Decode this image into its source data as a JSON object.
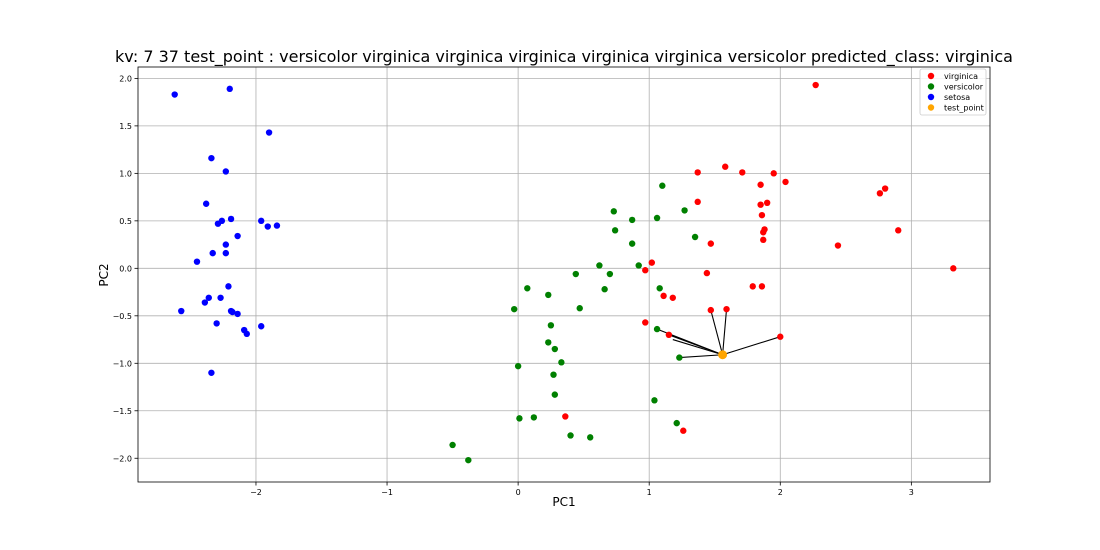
{
  "chart_data": {
    "type": "scatter",
    "title": "kv: 7 37 test_point : versicolor virginica virginica virginica virginica virginica versicolor   predicted_class: virginica",
    "xlabel": "PC1",
    "ylabel": "PC2",
    "xlim": [
      -2.9,
      3.6
    ],
    "ylim": [
      -2.25,
      2.12
    ],
    "xticks": [
      -2,
      -1,
      0,
      1,
      2,
      3
    ],
    "xtick_labels": [
      "−2",
      "−1",
      "0",
      "1",
      "2",
      "3"
    ],
    "yticks": [
      2.0,
      1.5,
      1.0,
      0.5,
      0.0,
      -0.5,
      -1.0,
      -1.5,
      -2.0
    ],
    "ytick_labels": [
      "2.0",
      "1.5",
      "1.0",
      "0.5",
      "0.0",
      "−0.5",
      "−1.0",
      "−1.5",
      "−2.0"
    ],
    "grid": true,
    "legend_position": "top-right",
    "series": [
      {
        "name": "virginica",
        "color": "#ff0000",
        "points": [
          [
            2.27,
            1.93
          ],
          [
            1.58,
            1.07
          ],
          [
            1.37,
            1.01
          ],
          [
            1.71,
            1.01
          ],
          [
            1.95,
            1.0
          ],
          [
            2.04,
            0.91
          ],
          [
            1.85,
            0.88
          ],
          [
            2.8,
            0.84
          ],
          [
            2.76,
            0.79
          ],
          [
            1.37,
            0.7
          ],
          [
            1.9,
            0.69
          ],
          [
            1.85,
            0.67
          ],
          [
            1.86,
            0.56
          ],
          [
            1.88,
            0.41
          ],
          [
            1.87,
            0.38
          ],
          [
            2.9,
            0.4
          ],
          [
            1.87,
            0.3
          ],
          [
            1.47,
            0.26
          ],
          [
            2.44,
            0.24
          ],
          [
            1.02,
            0.06
          ],
          [
            0.97,
            -0.02
          ],
          [
            3.32,
            0.0
          ],
          [
            1.44,
            -0.05
          ],
          [
            1.79,
            -0.19
          ],
          [
            1.86,
            -0.19
          ],
          [
            1.11,
            -0.29
          ],
          [
            1.18,
            -0.31
          ],
          [
            1.47,
            -0.44
          ],
          [
            1.59,
            -0.43
          ],
          [
            0.97,
            -0.57
          ],
          [
            1.15,
            -0.7
          ],
          [
            2.0,
            -0.72
          ],
          [
            0.36,
            -1.56
          ],
          [
            1.26,
            -1.71
          ]
        ]
      },
      {
        "name": "versicolor",
        "color": "#008000",
        "points": [
          [
            1.1,
            0.87
          ],
          [
            0.73,
            0.6
          ],
          [
            1.27,
            0.61
          ],
          [
            0.87,
            0.51
          ],
          [
            1.06,
            0.53
          ],
          [
            0.74,
            0.4
          ],
          [
            1.35,
            0.33
          ],
          [
            0.87,
            0.26
          ],
          [
            0.62,
            0.03
          ],
          [
            0.92,
            0.03
          ],
          [
            0.44,
            -0.06
          ],
          [
            0.7,
            -0.06
          ],
          [
            0.07,
            -0.21
          ],
          [
            0.66,
            -0.22
          ],
          [
            1.08,
            -0.21
          ],
          [
            0.23,
            -0.28
          ],
          [
            -0.03,
            -0.43
          ],
          [
            0.47,
            -0.42
          ],
          [
            0.25,
            -0.6
          ],
          [
            1.06,
            -0.64
          ],
          [
            0.23,
            -0.78
          ],
          [
            0.28,
            -0.85
          ],
          [
            1.23,
            -0.94
          ],
          [
            0.33,
            -0.99
          ],
          [
            0.0,
            -1.03
          ],
          [
            0.27,
            -1.12
          ],
          [
            0.28,
            -1.33
          ],
          [
            1.04,
            -1.39
          ],
          [
            0.01,
            -1.58
          ],
          [
            0.12,
            -1.57
          ],
          [
            1.21,
            -1.63
          ],
          [
            0.4,
            -1.76
          ],
          [
            0.55,
            -1.78
          ],
          [
            -0.5,
            -1.86
          ],
          [
            -0.38,
            -2.02
          ]
        ]
      },
      {
        "name": "setosa",
        "color": "#0000ff",
        "points": [
          [
            -2.62,
            1.83
          ],
          [
            -2.2,
            1.89
          ],
          [
            -1.9,
            1.43
          ],
          [
            -2.34,
            1.16
          ],
          [
            -2.23,
            1.02
          ],
          [
            -2.38,
            0.68
          ],
          [
            -2.19,
            0.52
          ],
          [
            -2.26,
            0.5
          ],
          [
            -2.29,
            0.47
          ],
          [
            -1.96,
            0.5
          ],
          [
            -1.84,
            0.45
          ],
          [
            -1.91,
            0.44
          ],
          [
            -2.14,
            0.34
          ],
          [
            -2.23,
            0.25
          ],
          [
            -2.33,
            0.16
          ],
          [
            -2.23,
            0.16
          ],
          [
            -2.45,
            0.07
          ],
          [
            -2.21,
            -0.19
          ],
          [
            -2.36,
            -0.31
          ],
          [
            -2.27,
            -0.31
          ],
          [
            -2.39,
            -0.36
          ],
          [
            -2.57,
            -0.45
          ],
          [
            -2.19,
            -0.45
          ],
          [
            -2.18,
            -0.46
          ],
          [
            -2.14,
            -0.48
          ],
          [
            -2.3,
            -0.58
          ],
          [
            -1.96,
            -0.61
          ],
          [
            -2.09,
            -0.65
          ],
          [
            -2.07,
            -0.69
          ],
          [
            -2.34,
            -1.1
          ]
        ]
      },
      {
        "name": "test_point",
        "color": "#ffa500",
        "points": [
          [
            1.56,
            -0.91
          ]
        ]
      }
    ],
    "neighbor_lines": {
      "color": "#000000",
      "from": [
        1.56,
        -0.91
      ],
      "to": [
        [
          1.06,
          -0.64
        ],
        [
          1.23,
          -0.94
        ],
        [
          1.15,
          -0.7
        ],
        [
          1.47,
          -0.44
        ],
        [
          1.59,
          -0.43
        ],
        [
          2.0,
          -0.72
        ],
        [
          1.18,
          -0.75
        ]
      ]
    }
  }
}
